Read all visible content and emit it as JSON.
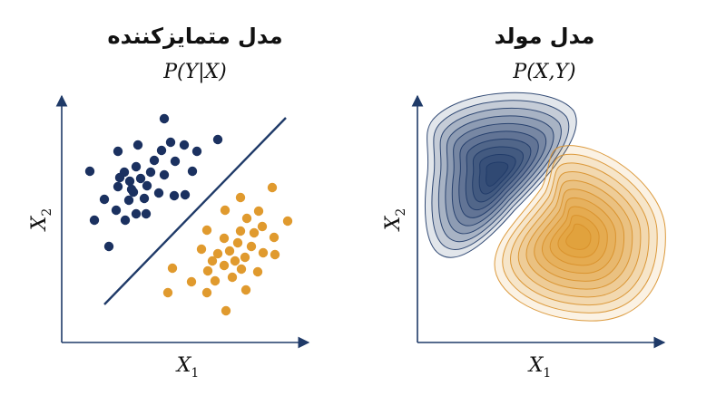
{
  "panels": [
    {
      "title": "مدل متمایزکننده",
      "formula": "P(Y|X)",
      "x_label": {
        "main": "X",
        "sub": "1"
      },
      "y_label": {
        "main": "X",
        "sub": "2"
      }
    },
    {
      "title": "مدل مولد",
      "formula": "P(X,Y)",
      "x_label": {
        "main": "X",
        "sub": "1"
      },
      "y_label": {
        "main": "X",
        "sub": "2"
      }
    }
  ]
}
